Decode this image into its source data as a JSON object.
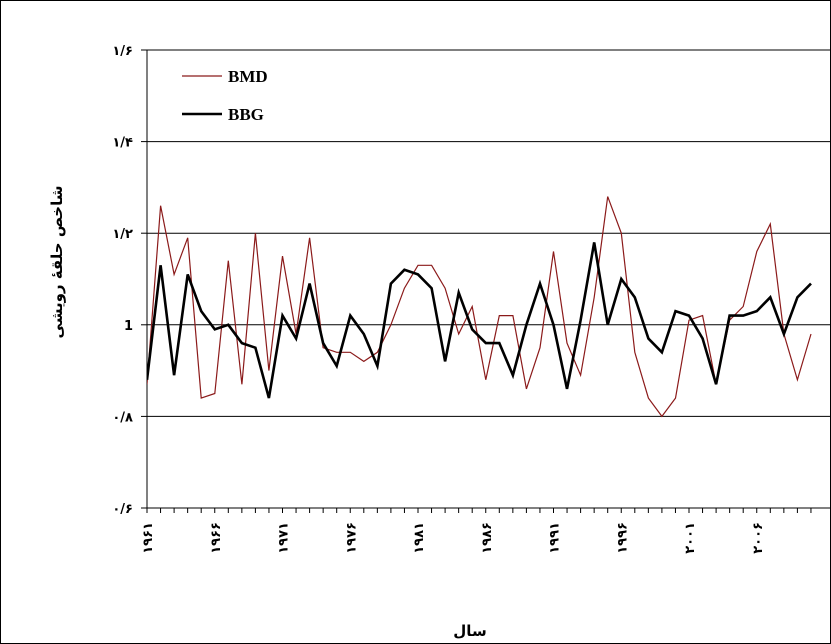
{
  "chart_data": {
    "type": "line",
    "xlabel": "سال",
    "ylabel": "شاخص حلقهٔ رویشی",
    "ylim": [
      0.6,
      1.6
    ],
    "xlim": [
      1961,
      2010
    ],
    "grid": true,
    "legend_placement": "top-left",
    "y_ticks": [
      {
        "value": 0.6,
        "label": "۰/۶"
      },
      {
        "value": 0.8,
        "label": "۰/۸"
      },
      {
        "value": 1.0,
        "label": "1"
      },
      {
        "value": 1.2,
        "label": "۱/۲"
      },
      {
        "value": 1.4,
        "label": "۱/۴"
      },
      {
        "value": 1.6,
        "label": "۱/۶"
      }
    ],
    "x_tick_labels": [
      {
        "value": 1961,
        "label": "۱۹۶۱"
      },
      {
        "value": 1966,
        "label": "۱۹۶۶"
      },
      {
        "value": 1971,
        "label": "۱۹۷۱"
      },
      {
        "value": 1976,
        "label": "۱۹۷۶"
      },
      {
        "value": 1981,
        "label": "۱۹۸۱"
      },
      {
        "value": 1986,
        "label": "۱۹۸۶"
      },
      {
        "value": 1991,
        "label": "۱۹۹۱"
      },
      {
        "value": 1996,
        "label": "۱۹۹۶"
      },
      {
        "value": 2001,
        "label": "۲۰۰۱"
      },
      {
        "value": 2006,
        "label": "۲۰۰۶"
      }
    ],
    "x": [
      1961,
      1962,
      1963,
      1964,
      1965,
      1966,
      1967,
      1968,
      1969,
      1970,
      1971,
      1972,
      1973,
      1974,
      1975,
      1976,
      1977,
      1978,
      1979,
      1980,
      1981,
      1982,
      1983,
      1984,
      1985,
      1986,
      1987,
      1988,
      1989,
      1990,
      1991,
      1992,
      1993,
      1994,
      1995,
      1996,
      1997,
      1998,
      1999,
      2000,
      2001,
      2002,
      2003,
      2004,
      2005,
      2006,
      2007,
      2008,
      2009,
      2010
    ],
    "series": [
      {
        "name": "BMD",
        "color": "#8b1a1a",
        "values": [
          0.87,
          1.26,
          1.11,
          1.19,
          0.84,
          0.85,
          1.14,
          0.87,
          1.2,
          0.9,
          1.15,
          0.98,
          1.19,
          0.95,
          0.94,
          0.94,
          0.92,
          0.94,
          1.0,
          1.08,
          1.13,
          1.13,
          1.08,
          0.98,
          1.04,
          0.88,
          1.02,
          1.02,
          0.86,
          0.95,
          1.16,
          0.96,
          0.89,
          1.06,
          1.28,
          1.2,
          0.94,
          0.84,
          0.8,
          0.84,
          1.01,
          1.02,
          0.87,
          1.01,
          1.04,
          1.16,
          1.22,
          0.98,
          0.88,
          0.98
        ]
      },
      {
        "name": "BBG",
        "color": "#000000",
        "values": [
          0.88,
          1.13,
          0.89,
          1.11,
          1.03,
          0.99,
          1.0,
          0.96,
          0.95,
          0.84,
          1.02,
          0.97,
          1.09,
          0.96,
          0.91,
          1.02,
          0.98,
          0.91,
          1.09,
          1.12,
          1.11,
          1.08,
          0.92,
          1.07,
          0.99,
          0.96,
          0.96,
          0.89,
          1.0,
          1.09,
          1.0,
          0.86,
          1.01,
          1.18,
          1.0,
          1.1,
          1.06,
          0.97,
          0.94,
          1.03,
          1.02,
          0.97,
          0.87,
          1.02,
          1.02,
          1.03,
          1.06,
          0.98,
          1.06,
          1.09
        ]
      }
    ]
  }
}
